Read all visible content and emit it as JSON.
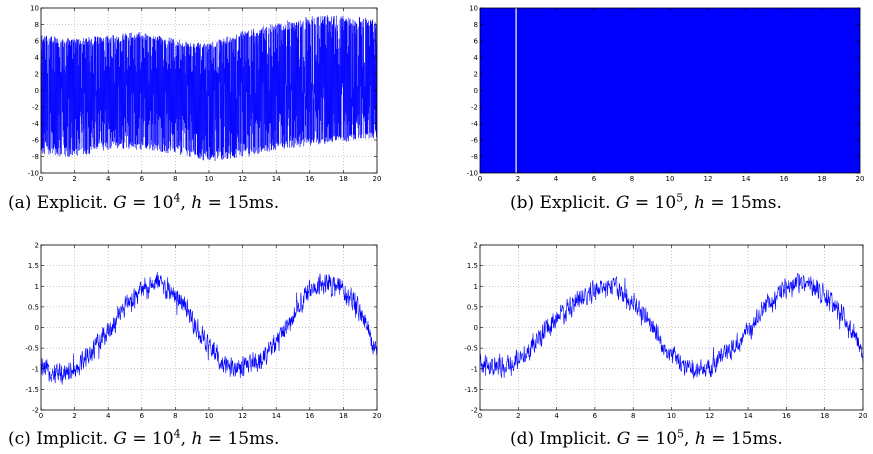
{
  "chart_data": [
    {
      "type": "line",
      "xlim": [
        0,
        20
      ],
      "ylim": [
        -10,
        10
      ],
      "xticks": [
        0,
        2,
        4,
        6,
        8,
        10,
        12,
        14,
        16,
        18,
        20
      ],
      "yticks": [
        -10,
        -8,
        -6,
        -4,
        -2,
        0,
        2,
        4,
        6,
        8,
        10
      ],
      "grid": true,
      "series": [
        {
          "color": "#0000ff",
          "envelope_x": [
            0,
            2,
            4,
            6,
            8,
            10,
            12,
            14,
            16,
            18,
            20
          ],
          "envelope_upper": [
            7,
            6.5,
            7,
            7.5,
            6.5,
            6,
            7.5,
            8.5,
            9.5,
            9.5,
            9
          ],
          "envelope_lower": [
            -8,
            -8.5,
            -7.5,
            -7.5,
            -8,
            -9,
            -8.5,
            -7.5,
            -7,
            -6.5,
            -6
          ]
        }
      ],
      "caption": {
        "prefix": "(a) Explicit. ",
        "var1": "G",
        "eq1": " = 10",
        "exp1": "4",
        "sep": ", ",
        "var2": "h",
        "eq2": " = 15ms."
      }
    },
    {
      "type": "area",
      "xlim": [
        0,
        20
      ],
      "ylim": [
        -10,
        10
      ],
      "xticks": [
        0,
        2,
        4,
        6,
        8,
        10,
        12,
        14,
        16,
        18,
        20
      ],
      "yticks": [
        -10,
        -8,
        -6,
        -4,
        -2,
        0,
        2,
        4,
        6,
        8,
        10
      ],
      "grid": true,
      "series": [
        {
          "color": "#0000ff",
          "fill_range": [
            -10,
            10
          ],
          "gap_x": 1.9
        }
      ],
      "caption": {
        "prefix": "(b) Explicit. ",
        "var1": "G",
        "eq1": " = 10",
        "exp1": "5",
        "sep": ", ",
        "var2": "h",
        "eq2": " = 15ms."
      }
    },
    {
      "type": "line",
      "xlim": [
        0,
        20
      ],
      "ylim": [
        -2,
        2
      ],
      "xticks": [
        0,
        2,
        4,
        6,
        8,
        10,
        12,
        14,
        16,
        18,
        20
      ],
      "yticks": [
        -2,
        -1.5,
        -1,
        -0.5,
        0,
        0.5,
        1,
        1.5,
        2
      ],
      "grid": true,
      "series": [
        {
          "color": "#0000ff",
          "trend_x": [
            0,
            1,
            2,
            3,
            4,
            5,
            6,
            7,
            8,
            9,
            10,
            11,
            12,
            13,
            14,
            15,
            16,
            17,
            18,
            19,
            20
          ],
          "trend_y": [
            -1.0,
            -1.1,
            -1.0,
            -0.6,
            -0.1,
            0.5,
            0.9,
            1.1,
            0.8,
            0.2,
            -0.5,
            -0.9,
            -1.0,
            -0.8,
            -0.4,
            0.3,
            0.9,
            1.1,
            0.9,
            0.4,
            -0.6
          ],
          "noise_amplitude": 0.35
        }
      ],
      "caption": {
        "prefix": "(c) Implicit. ",
        "var1": "G",
        "eq1": " = 10",
        "exp1": "4",
        "sep": ", ",
        "var2": "h",
        "eq2": " = 15ms."
      }
    },
    {
      "type": "line",
      "xlim": [
        0,
        20
      ],
      "ylim": [
        -2,
        2
      ],
      "xticks": [
        0,
        2,
        4,
        6,
        8,
        10,
        12,
        14,
        16,
        18,
        20
      ],
      "yticks": [
        -2,
        -1.5,
        -1,
        -0.5,
        0,
        0.5,
        1,
        1.5,
        2
      ],
      "grid": true,
      "series": [
        {
          "color": "#0000ff",
          "trend_x": [
            0,
            1,
            2,
            3,
            4,
            5,
            6,
            7,
            8,
            9,
            10,
            11,
            12,
            13,
            14,
            15,
            16,
            17,
            18,
            19,
            20
          ],
          "trend_y": [
            -0.9,
            -1.0,
            -0.8,
            -0.3,
            0.2,
            0.6,
            0.9,
            1.0,
            0.6,
            0.0,
            -0.7,
            -1.0,
            -1.0,
            -0.6,
            -0.1,
            0.5,
            1.0,
            1.1,
            0.8,
            0.2,
            -0.7
          ],
          "noise_amplitude": 0.35
        }
      ],
      "caption": {
        "prefix": "(d) Implicit. ",
        "var1": "G",
        "eq1": " = 10",
        "exp1": "5",
        "sep": ", ",
        "var2": "h",
        "eq2": " = 15ms."
      }
    }
  ]
}
